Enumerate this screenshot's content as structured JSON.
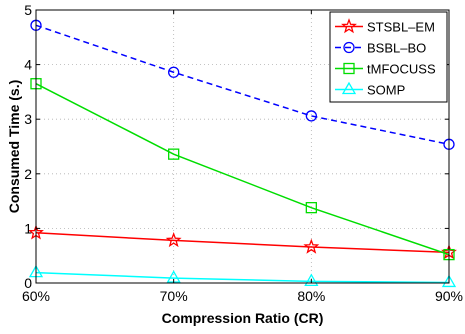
{
  "chart_data": {
    "type": "line",
    "title": "",
    "xlabel": "Compression Ratio (CR)",
    "ylabel": "Consumed Time (s.)",
    "x": [
      "60%",
      "70%",
      "80%",
      "90%"
    ],
    "x_values": [
      60,
      70,
      80,
      90
    ],
    "xlim": [
      60,
      90
    ],
    "ylim": [
      0,
      5
    ],
    "yticks": [
      0,
      1,
      2,
      3,
      4,
      5
    ],
    "grid": true,
    "legend_position": "top-right",
    "series": [
      {
        "name": "STSBL–EM",
        "values": [
          0.92,
          0.78,
          0.66,
          0.56
        ],
        "color": "#ff0000",
        "marker": "star",
        "dash": "solid"
      },
      {
        "name": "BSBL–BO",
        "values": [
          4.72,
          3.86,
          3.06,
          2.54
        ],
        "color": "#0000ff",
        "marker": "circle",
        "dash": "dashed"
      },
      {
        "name": "tMFOCUSS",
        "values": [
          3.65,
          2.36,
          1.38,
          0.52
        ],
        "color": "#00dd00",
        "marker": "square",
        "dash": "solid"
      },
      {
        "name": "SOMP",
        "values": [
          0.19,
          0.09,
          0.03,
          0.01
        ],
        "color": "#00ffff",
        "marker": "triangle",
        "dash": "solid"
      }
    ]
  }
}
